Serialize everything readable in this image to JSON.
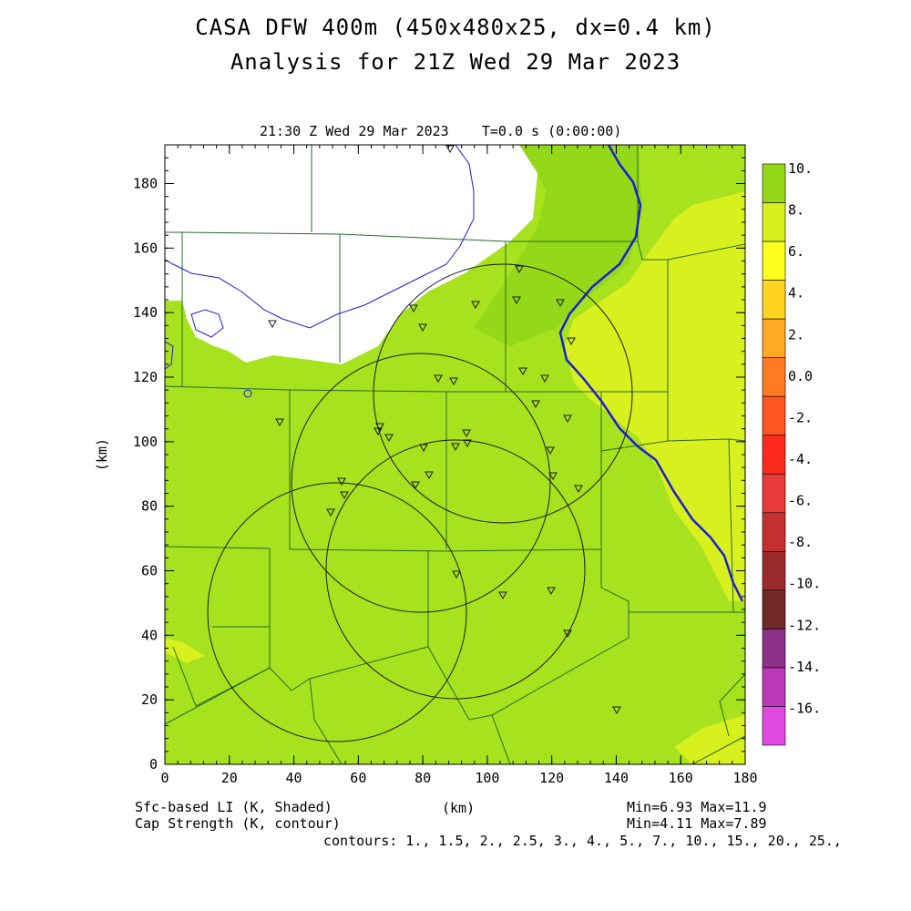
{
  "title_line1": "CASA DFW 400m (450x480x25, dx=0.4 km)",
  "title_line2": "Analysis for 21Z Wed 29 Mar 2023",
  "valid_time": "21:30 Z Wed 29 Mar 2023    T=0.0 s (0:00:00)",
  "x_axis": {
    "label": "(km)",
    "ticks": [
      "0",
      "20",
      "40",
      "60",
      "80",
      "100",
      "120",
      "140",
      "160",
      "180"
    ],
    "range": [
      0,
      180
    ]
  },
  "y_axis": {
    "label": "(km)",
    "ticks": [
      "0",
      "20",
      "40",
      "60",
      "80",
      "100",
      "120",
      "140",
      "160",
      "180"
    ],
    "range": [
      0,
      192
    ]
  },
  "colorbar": {
    "labels": [
      "10.",
      "8.",
      "6.",
      "4.",
      "2.",
      "0.0",
      "-2.",
      "-4.",
      "-6.",
      "-8.",
      "-10.",
      "-12.",
      "-14.",
      "-16."
    ],
    "colors": [
      "#94d81a",
      "#d8f01e",
      "#ffff1e",
      "#ffd420",
      "#ffaa22",
      "#ff7a22",
      "#ff5520",
      "#ff2a1e",
      "#e83a3a",
      "#c43030",
      "#9a2a2a",
      "#702828",
      "#8c3088",
      "#bc3ab8",
      "#e04ae0"
    ]
  },
  "fields": {
    "shaded_label": "Sfc-based LI (K, Shaded)",
    "contour_label": "Cap Strength (K, contour)",
    "shaded_stats": "Min=6.93 Max=11.9",
    "contour_stats": "Min=4.11 Max=7.89",
    "contours": "contours: 1., 1.5, 2., 2.5, 3., 4., 5., 7., 10., 15., 20., 25.,"
  },
  "xlabel_center": "(km)",
  "colors": {
    "field_main": "#a6e21e",
    "field_high": "#94d81a",
    "field_low": "#d8f01e",
    "county": "#2a6a2a",
    "river": "#1e1ed2"
  }
}
